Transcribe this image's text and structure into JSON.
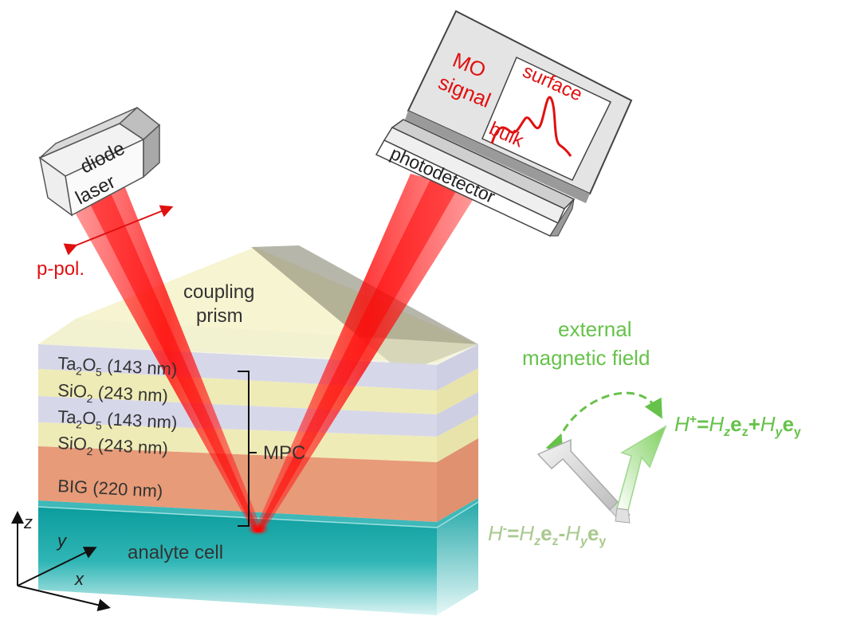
{
  "laser": {
    "line1": "diode",
    "line2": "laser",
    "polarization": "p-pol."
  },
  "detector": {
    "label": "photodetector",
    "signal_line1": "MO",
    "signal_line2": "signal",
    "curve_surface": "surface",
    "curve_bulk": "bulk"
  },
  "prism": {
    "line1": "coupling",
    "line2": "prism"
  },
  "layers": [
    {
      "material": "Ta",
      "sub": "2",
      "material2": "O",
      "sub2": "5",
      "thickness": " (143 nm)"
    },
    {
      "material": "SiO",
      "sub": "2",
      "thickness": " (243 nm)"
    },
    {
      "material": "Ta",
      "sub": "2",
      "material2": "O",
      "sub2": "5",
      "thickness": " (143 nm)"
    },
    {
      "material": "SiO",
      "sub": "2",
      "thickness": " (243 nm)"
    },
    {
      "material": "BIG (220 nm)"
    }
  ],
  "mpc_label": "MPC",
  "analyte_label": "analyte cell",
  "axes": {
    "z": "z",
    "y": "y",
    "x": "x"
  },
  "field": {
    "line1": "external",
    "line2": "magnetic field",
    "h_plus": {
      "H": "H",
      "sup": "+",
      "eq": "=",
      "Hz": "H",
      "z": "z",
      "ez": "e",
      "z2": "z",
      "plus": "+",
      "Hy": "H",
      "y": "y",
      "ey": "e",
      "y2": "y"
    },
    "h_minus": {
      "H": "H",
      "sup": "-",
      "eq": "=",
      "Hz": "H",
      "z": "z",
      "ez": "e",
      "z2": "z",
      "minus": "-",
      "Hy": "H",
      "y": "y",
      "ey": "e",
      "y2": "y"
    }
  },
  "colors": {
    "laser_red": "#ff1a1a",
    "label_red": "#e01010",
    "field_green": "#66c24a",
    "field_green_pale": "#a9c98e",
    "ta2o5": "#d6d6ea",
    "sio2": "#ede9b2",
    "big": "#e89a78",
    "analyte": "#1aa7a7"
  }
}
